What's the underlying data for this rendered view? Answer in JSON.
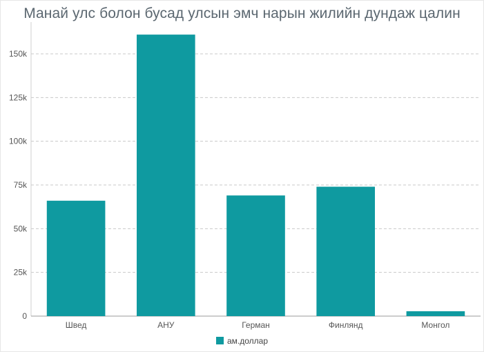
{
  "colors": {
    "bar": "#0f9aa0",
    "grid": "#c8c8c8",
    "axis_text": "#555555",
    "title": "#5b6770"
  },
  "chart_data": {
    "type": "bar",
    "title": "Манай улс болон бусад улсын эмч нарын жилийн дундаж цалин",
    "xlabel": "",
    "ylabel": "",
    "categories": [
      "Швед",
      "АНУ",
      "Герман",
      "Финлянд",
      "Монгол"
    ],
    "series": [
      {
        "name": "ам.доллар",
        "values": [
          66000,
          161000,
          69000,
          74000,
          2800
        ]
      }
    ],
    "ylim": [
      0,
      165000
    ],
    "yticks": [
      0,
      25000,
      50000,
      75000,
      100000,
      125000,
      150000
    ],
    "ytick_labels": [
      "0",
      "25k",
      "50k",
      "75k",
      "100k",
      "125k",
      "150k"
    ],
    "grid": true,
    "legend_position": "bottom"
  }
}
